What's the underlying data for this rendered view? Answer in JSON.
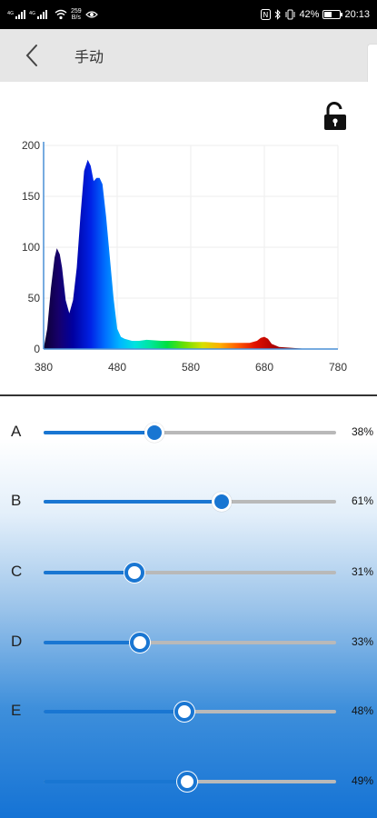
{
  "status_bar": {
    "left_speed": "259",
    "left_speed_unit": "B/s",
    "battery_percent": "42%",
    "battery_level": 0.42,
    "time": "20:13"
  },
  "header": {
    "title": "手动"
  },
  "icons": {
    "back": "back-chevron-icon",
    "lock": "unlock-icon"
  },
  "chart_data": {
    "type": "area",
    "x_ticks": [
      "380",
      "480",
      "580",
      "680",
      "780"
    ],
    "y_ticks": [
      "0",
      "50",
      "100",
      "150",
      "200"
    ],
    "xlim": [
      380,
      780
    ],
    "ylim": [
      0,
      200
    ],
    "grid": true,
    "x": [
      380,
      385,
      390,
      395,
      398,
      402,
      405,
      410,
      415,
      420,
      425,
      430,
      435,
      440,
      444,
      448,
      452,
      456,
      460,
      465,
      470,
      475,
      480,
      485,
      490,
      500,
      510,
      520,
      540,
      560,
      580,
      600,
      620,
      640,
      660,
      670,
      675,
      680,
      685,
      690,
      700,
      720,
      740,
      760,
      780
    ],
    "y": [
      0,
      20,
      60,
      90,
      99,
      93,
      80,
      48,
      35,
      48,
      80,
      130,
      175,
      186,
      180,
      165,
      168,
      168,
      162,
      130,
      90,
      50,
      20,
      12,
      10,
      8,
      8,
      9,
      8,
      8,
      7,
      7,
      6,
      6,
      6,
      8,
      11,
      12,
      10,
      5,
      2,
      1,
      0,
      0,
      0
    ]
  },
  "channels": [
    {
      "label": "A",
      "value": 38,
      "value_text": "38%"
    },
    {
      "label": "B",
      "value": 61,
      "value_text": "61%"
    },
    {
      "label": "C",
      "value": 31,
      "value_text": "31%"
    },
    {
      "label": "D",
      "value": 33,
      "value_text": "33%"
    },
    {
      "label": "E",
      "value": 48,
      "value_text": "48%"
    },
    {
      "label": "",
      "value": 49,
      "value_text": "49%"
    }
  ],
  "colors": {
    "accent": "#1976d2",
    "track": "#b9b9b9",
    "appbar": "#e6e6e6"
  }
}
